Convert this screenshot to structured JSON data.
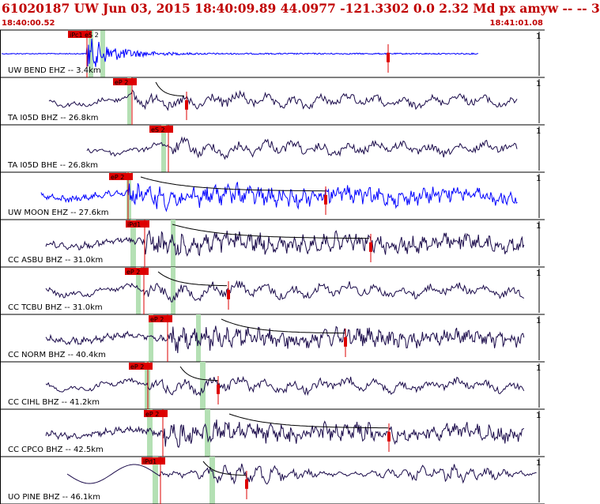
{
  "header": {
    "title": "61020187 UW Jun 03, 2015 18:40:09.89    44.0977 -121.3302  0.0 2.32 Md px amyw -- --    3",
    "start_time": "18:40:00.52",
    "end_time": "18:41:01.08"
  },
  "colors": {
    "header_text": "#c00000",
    "pick_red": "#dd0000",
    "trace_dark": "#1a0a4a",
    "trace_blue": "#0000ff",
    "window_green": "#b4e0b4"
  },
  "traces": [
    {
      "label": "UW BEND EHZ -- 3.4km",
      "color": "blue",
      "pick_text": "iPc1 eS 2",
      "scale": "1",
      "style": "burst"
    },
    {
      "label": "TA I05D BHZ -- 26.8km",
      "color": "dark",
      "pick_text": "eP 2",
      "scale": "1",
      "style": "wave"
    },
    {
      "label": "TA I05D BHE -- 26.8km",
      "color": "dark",
      "pick_text": "eS 2",
      "scale": "1",
      "style": "wave"
    },
    {
      "label": "UW MOON EHZ -- 27.6km",
      "color": "blue",
      "pick_text": "eP 2",
      "scale": "1",
      "style": "dense"
    },
    {
      "label": "CC ASBU BHZ -- 31.0km",
      "color": "dark",
      "pick_text": "iPd1",
      "scale": "1",
      "style": "dense"
    },
    {
      "label": "CC TCBU BHZ -- 31.0km",
      "color": "dark",
      "pick_text": "eP 2",
      "scale": "1",
      "style": "wave"
    },
    {
      "label": "CC NORM BHZ -- 40.4km",
      "color": "dark",
      "pick_text": "eP 2",
      "scale": "1",
      "style": "dense"
    },
    {
      "label": "CC CIHL BHZ -- 41.2km",
      "color": "dark",
      "pick_text": "eP 2",
      "scale": "1",
      "style": "wave"
    },
    {
      "label": "CC CPCO BHZ -- 42.5km",
      "color": "dark",
      "pick_text": "eP 2",
      "scale": "1",
      "style": "dense"
    },
    {
      "label": "UO PINE BHZ -- 46.1km",
      "color": "dark",
      "pick_text": "iPd1",
      "scale": "1",
      "style": "long"
    }
  ]
}
